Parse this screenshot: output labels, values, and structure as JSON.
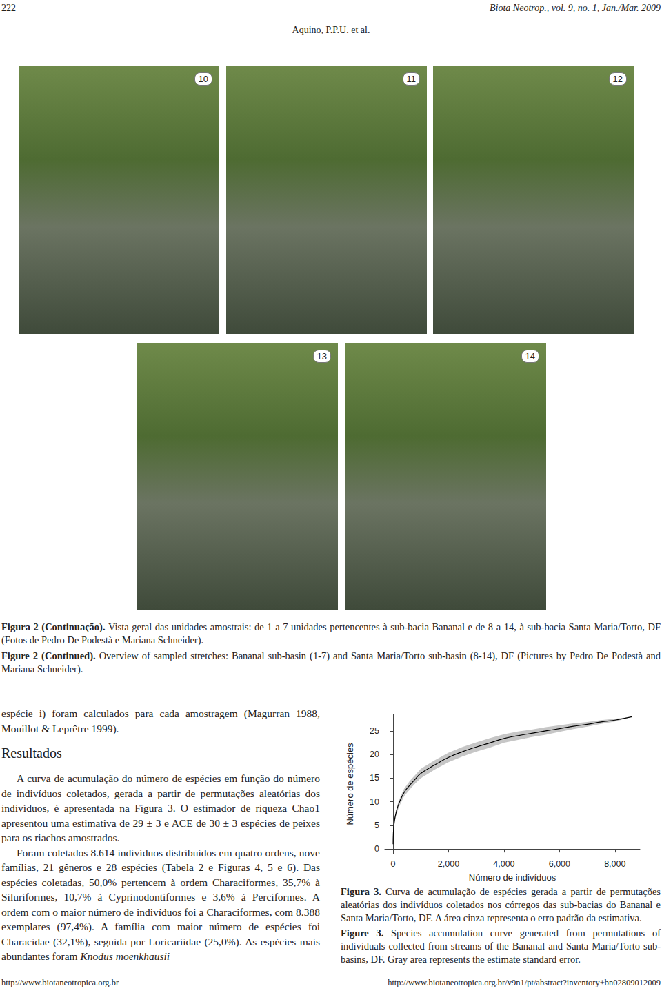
{
  "header": {
    "page_number": "222",
    "journal": "Biota Neotrop., vol. 9, no. 1, Jan./Mar. 2009",
    "authors": "Aquino, P.P.U. et al."
  },
  "photos": [
    "10",
    "11",
    "12",
    "13",
    "14"
  ],
  "figure2_caption": {
    "pt": {
      "bold": "Figura 2 (Continuação).",
      "text": " Vista geral das unidades amostrais: de 1 a 7 unidades pertencentes à sub-bacia Bananal e de 8 a 14, à sub-bacia Santa Maria/Torto, DF (Fotos de Pedro De Podestà e Mariana Schneider)."
    },
    "en": {
      "bold": "Figure 2 (Continued).",
      "text": " Overview of sampled stretches: Bananal sub-basin (1-7) and Santa Maria/Torto sub-basin (8-14), DF (Pictures by Pedro De Podestà and Mariana Schneider)."
    }
  },
  "body": {
    "intro": "espécie i) foram calculados para cada amostragem (Magurran 1988, Mouillot & Leprêtre 1999).",
    "heading": "Resultados",
    "paragraphs": [
      {
        "text": "A curva de acumulação do número de espécies em função do número de indivíduos coletados, gerada a partir de permutações aleatórias dos indivíduos, é apresentada na Figura 3. O estimador de riqueza Chao1 apresentou uma estimativa de 29 ± 3 e ACE de 30 ± 3 espécies de peixes para os riachos amostrados.",
        "italic": null
      },
      {
        "text": "Foram coletados 8.614 indivíduos distribuídos em quatro ordens, nove famílias, 21 gêneros e 28 espécies (Tabela 2 e Figuras 4, 5 e 6). Das espécies coletadas, 50,0% pertencem à ordem Characiformes, 35,7% à Siluriformes, 10,7% à Cyprinodontiformes e 3,6% à Perciformes. A ordem com o maior número de indivíduos foi a Characiformes, com 8.388 exemplares (97,4%). A família com maior número de espécies foi Characidae (32,1%), seguida por Loricariidae (25,0%). As espécies mais abundantes foram ",
        "italic": "Knodus moenkhausii"
      }
    ]
  },
  "chart_data": {
    "type": "line",
    "x_label": "Número de indivíduos",
    "y_label": "Número de espécies",
    "x": [
      0,
      10,
      50,
      100,
      200,
      400,
      600,
      800,
      1000,
      1500,
      2000,
      2500,
      3000,
      3500,
      4000,
      4500,
      5000,
      5500,
      6000,
      6500,
      7000,
      7500,
      8000,
      8614
    ],
    "values": [
      1,
      3.5,
      6,
      7.5,
      9.5,
      12,
      13.5,
      14.8,
      16,
      17.8,
      19.4,
      20.6,
      21.6,
      22.5,
      23.4,
      24,
      24.5,
      25,
      25.5,
      26,
      26.4,
      26.9,
      27.3,
      28
    ],
    "std_error": [
      0,
      0.3,
      0.5,
      0.6,
      0.7,
      0.8,
      0.9,
      0.9,
      1.0,
      1.0,
      1.0,
      1.0,
      1.0,
      1.0,
      0.9,
      0.9,
      0.8,
      0.8,
      0.7,
      0.6,
      0.5,
      0.4,
      0.3,
      0
    ],
    "color": "#000000",
    "xlim": [
      -300,
      8900
    ],
    "xticks": [
      0,
      2000,
      4000,
      6000,
      8000
    ],
    "ylim": [
      -1,
      28.5
    ],
    "yticks": [
      0,
      5,
      10,
      15,
      20,
      25
    ],
    "grid": false
  },
  "figure3_caption": {
    "pt": {
      "bold": "Figura 3.",
      "text": " Curva de acumulação de espécies gerada a partir de permutações aleatórias dos indivíduos coletados nos córregos das sub-bacias do Bananal e Santa Maria/Torto, DF. A área cinza representa o erro padrão da estimativa."
    },
    "en": {
      "bold": "Figure 3.",
      "text": " Species accumulation curve generated from permutations of individuals collected from streams of the Bananal and Santa Maria/Torto sub-basins, DF. Gray area represents the estimate standard error."
    }
  },
  "footer": {
    "left": "http://www.biotaneotropica.org.br",
    "right": "http://www.biotaneotropica.org.br/v9n1/pt/abstract?inventory+bn02809012009"
  }
}
